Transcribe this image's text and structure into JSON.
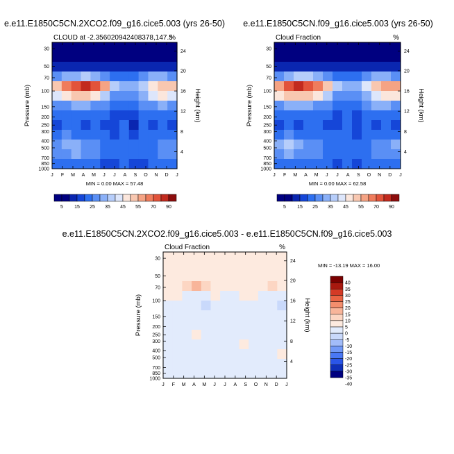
{
  "colors": {
    "background": "#ffffff",
    "abs_scale": [
      "#000080",
      "#0a26b0",
      "#1546d8",
      "#2d6ff0",
      "#5a8ff5",
      "#8ab0f8",
      "#b6cdfa",
      "#dde6fb",
      "#fbe6dc",
      "#f8c7b0",
      "#f5a384",
      "#ef7c5c",
      "#e2533a",
      "#c22a1e",
      "#8c0d0d"
    ],
    "diff_scale": [
      "#000080",
      "#0f2fb8",
      "#2a55e8",
      "#4a78f5",
      "#7299f7",
      "#a2bcf9",
      "#c9d9fb",
      "#e2ebfc",
      "#fdeadf",
      "#fcd6c3",
      "#f8b59a",
      "#f38e6d",
      "#ea6444",
      "#d43a26",
      "#a8180f",
      "#7a0000"
    ]
  },
  "chart_data": [
    {
      "id": "panel-top-left",
      "type": "heatmap",
      "title": "e.e11.E1850C5CN.2XCO2.f09_g16.cice5.003 (yrs 26-50)",
      "left_label": "CLOUD at -2.356020942408378,147.5",
      "right_label": "%",
      "ylabel": "Pressure (mb)",
      "y2label": "Height (km)",
      "x_ticks": [
        "J",
        "F",
        "M",
        "A",
        "M",
        "J",
        "J",
        "A",
        "S",
        "O",
        "N",
        "D",
        "J"
      ],
      "y_ticks": [
        30,
        50,
        70,
        100,
        150,
        200,
        250,
        300,
        400,
        500,
        700,
        850,
        1000
      ],
      "y2_ticks": [
        24,
        20,
        16,
        12,
        8,
        4
      ],
      "stats": "MIN =   0.00 MAX =  57.48",
      "colorbar_labels": [
        "5",
        "15",
        "25",
        "35",
        "45",
        "55",
        "70",
        "90"
      ],
      "scale": "abs",
      "grid": [
        [
          0,
          0,
          0,
          0,
          0,
          0,
          0,
          0,
          0,
          0,
          0,
          0,
          0
        ],
        [
          0,
          0,
          0,
          0,
          0,
          0,
          0,
          0,
          0,
          0,
          0,
          0,
          0
        ],
        [
          1,
          1,
          1,
          1,
          1,
          1,
          1,
          1,
          1,
          1,
          1,
          1,
          1
        ],
        [
          4,
          5,
          5,
          6,
          5,
          4,
          3,
          3,
          3,
          4,
          5,
          5,
          4
        ],
        [
          9,
          11,
          12,
          13,
          12,
          10,
          6,
          5,
          5,
          6,
          8,
          9,
          9
        ],
        [
          7,
          8,
          9,
          9,
          8,
          6,
          4,
          4,
          4,
          5,
          7,
          8,
          7
        ],
        [
          4,
          4,
          5,
          5,
          4,
          4,
          3,
          3,
          3,
          4,
          4,
          5,
          4
        ],
        [
          3,
          3,
          3,
          3,
          3,
          3,
          2,
          2,
          2,
          3,
          3,
          3,
          3
        ],
        [
          2,
          3,
          3,
          2,
          3,
          2,
          2,
          3,
          1,
          3,
          2,
          3,
          2
        ],
        [
          3,
          4,
          3,
          3,
          3,
          3,
          2,
          3,
          2,
          3,
          3,
          3,
          3
        ],
        [
          4,
          5,
          5,
          4,
          4,
          3,
          3,
          3,
          3,
          3,
          3,
          4,
          4
        ],
        [
          4,
          4,
          5,
          4,
          4,
          3,
          3,
          3,
          3,
          3,
          3,
          4,
          4
        ],
        [
          3,
          3,
          3,
          3,
          3,
          2,
          2,
          3,
          2,
          2,
          3,
          3,
          3
        ]
      ]
    },
    {
      "id": "panel-top-right",
      "type": "heatmap",
      "title": "e.e11.E1850C5CN.f09_g16.cice5.003 (yrs 26-50)",
      "left_label": "Cloud Fraction",
      "right_label": "%",
      "ylabel": "Pressure (mb)",
      "y2label": "Height (km)",
      "x_ticks": [
        "J",
        "F",
        "M",
        "A",
        "M",
        "J",
        "J",
        "A",
        "S",
        "O",
        "N",
        "D",
        "J"
      ],
      "y_ticks": [
        30,
        50,
        70,
        100,
        150,
        200,
        250,
        300,
        400,
        500,
        700,
        850,
        1000
      ],
      "y2_ticks": [
        24,
        20,
        16,
        12,
        8,
        4
      ],
      "stats": "MIN =   0.00 MAX =  62.58",
      "colorbar_labels": [
        "5",
        "15",
        "25",
        "35",
        "45",
        "55",
        "70",
        "90"
      ],
      "scale": "abs",
      "grid": [
        [
          0,
          0,
          0,
          0,
          0,
          0,
          0,
          0,
          0,
          0,
          0,
          0,
          0
        ],
        [
          0,
          0,
          0,
          0,
          0,
          0,
          0,
          0,
          0,
          0,
          0,
          0,
          0
        ],
        [
          1,
          1,
          1,
          1,
          1,
          1,
          1,
          1,
          1,
          1,
          1,
          1,
          1
        ],
        [
          4,
          5,
          6,
          6,
          5,
          4,
          3,
          3,
          3,
          4,
          5,
          5,
          4
        ],
        [
          10,
          12,
          13,
          12,
          11,
          9,
          6,
          5,
          5,
          7,
          9,
          10,
          10
        ],
        [
          8,
          9,
          9,
          9,
          8,
          6,
          4,
          4,
          4,
          5,
          7,
          8,
          8
        ],
        [
          4,
          5,
          5,
          5,
          4,
          4,
          3,
          3,
          3,
          4,
          5,
          5,
          4
        ],
        [
          3,
          3,
          3,
          3,
          3,
          3,
          2,
          3,
          2,
          3,
          3,
          3,
          3
        ],
        [
          2,
          3,
          2,
          3,
          3,
          2,
          2,
          3,
          2,
          3,
          2,
          3,
          2
        ],
        [
          3,
          4,
          3,
          3,
          3,
          3,
          3,
          3,
          2,
          3,
          3,
          3,
          3
        ],
        [
          5,
          6,
          5,
          4,
          4,
          3,
          3,
          3,
          3,
          3,
          4,
          4,
          5
        ],
        [
          4,
          5,
          4,
          4,
          4,
          3,
          3,
          3,
          3,
          3,
          4,
          4,
          4
        ],
        [
          3,
          3,
          3,
          3,
          3,
          3,
          2,
          3,
          2,
          3,
          3,
          3,
          3
        ]
      ]
    },
    {
      "id": "panel-bottom",
      "type": "heatmap",
      "title": "e.e11.E1850C5CN.2XCO2.f09_g16.cice5.003 - e.e11.E1850C5CN.f09_g16.cice5.003",
      "left_label": "Cloud Fraction",
      "right_label": "%",
      "ylabel": "Pressure (mb)",
      "y2label": "Height (km)",
      "x_ticks": [
        "J",
        "F",
        "M",
        "A",
        "M",
        "J",
        "J",
        "A",
        "S",
        "O",
        "N",
        "D",
        "J"
      ],
      "y_ticks": [
        30,
        50,
        70,
        100,
        150,
        200,
        250,
        300,
        400,
        500,
        700,
        850,
        1000
      ],
      "y2_ticks": [
        24,
        20,
        16,
        12,
        8,
        4
      ],
      "stats": "MIN = -13.19 MAX =  16.00",
      "colorbar_labels": [
        "40",
        "35",
        "30",
        "25",
        "20",
        "15",
        "10",
        "5",
        "0",
        "-5",
        "-10",
        "-15",
        "-20",
        "-25",
        "-30",
        "-35",
        "-40"
      ],
      "scale": "diff",
      "grid": [
        [
          8,
          8,
          8,
          8,
          8,
          8,
          8,
          8,
          8,
          8,
          8,
          8,
          8
        ],
        [
          8,
          8,
          8,
          8,
          8,
          8,
          8,
          8,
          8,
          8,
          8,
          8,
          8
        ],
        [
          8,
          8,
          8,
          8,
          8,
          8,
          8,
          8,
          8,
          8,
          8,
          8,
          8
        ],
        [
          8,
          8,
          9,
          10,
          9,
          8,
          8,
          8,
          8,
          8,
          8,
          9,
          8
        ],
        [
          8,
          8,
          7,
          7,
          7,
          8,
          7,
          7,
          8,
          8,
          7,
          7,
          7
        ],
        [
          7,
          7,
          7,
          7,
          6,
          7,
          7,
          7,
          7,
          7,
          7,
          7,
          6
        ],
        [
          7,
          7,
          7,
          7,
          7,
          7,
          7,
          7,
          7,
          7,
          7,
          7,
          7
        ],
        [
          7,
          7,
          7,
          7,
          7,
          7,
          7,
          7,
          7,
          7,
          7,
          7,
          7
        ],
        [
          7,
          7,
          7,
          8,
          7,
          7,
          7,
          7,
          7,
          7,
          7,
          7,
          7
        ],
        [
          7,
          7,
          7,
          7,
          7,
          7,
          7,
          7,
          8,
          7,
          7,
          7,
          7
        ],
        [
          7,
          7,
          7,
          7,
          7,
          7,
          7,
          7,
          7,
          7,
          7,
          7,
          8
        ],
        [
          7,
          7,
          7,
          7,
          7,
          7,
          7,
          7,
          7,
          7,
          7,
          7,
          7
        ],
        [
          7,
          7,
          7,
          7,
          7,
          7,
          7,
          7,
          7,
          7,
          7,
          7,
          7
        ]
      ]
    }
  ]
}
